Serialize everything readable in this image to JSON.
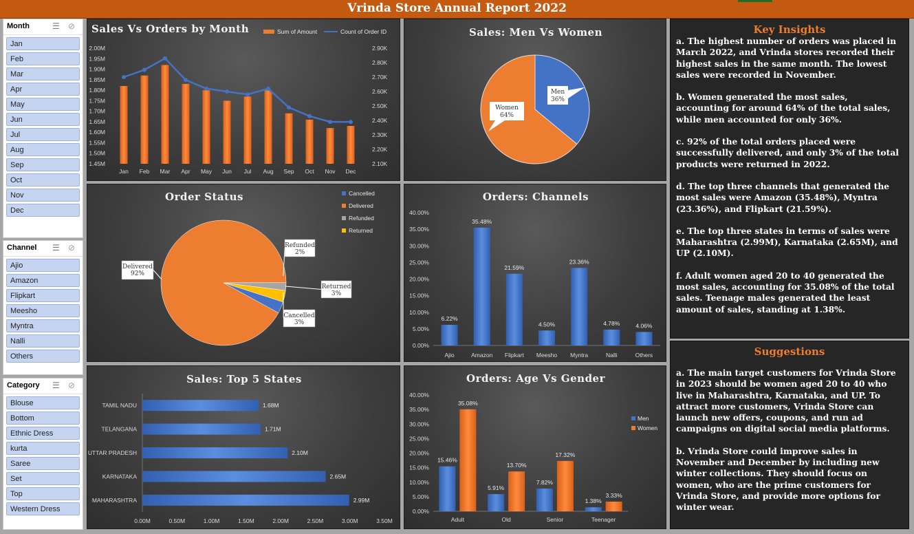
{
  "title": "Vrinda Store Annual Report 2022",
  "slicers": [
    {
      "label": "Month",
      "items": [
        "Jan",
        "Feb",
        "Mar",
        "Apr",
        "May",
        "Jun",
        "Jul",
        "Aug",
        "Sep",
        "Oct",
        "Nov",
        "Dec"
      ]
    },
    {
      "label": "Channel",
      "items": [
        "Ajio",
        "Amazon",
        "Flipkart",
        "Meesho",
        "Myntra",
        "Nalli",
        "Others"
      ]
    },
    {
      "label": "Category",
      "items": [
        "Blouse",
        "Bottom",
        "Ethnic Dress",
        "kurta",
        "Saree",
        "Set",
        "Top",
        "Western Dress"
      ]
    }
  ],
  "colors": {
    "orange": "#ed7d31",
    "blue": "#4472c4",
    "gray": "#a5a5a5",
    "yellow": "#ffc000",
    "title_bar": "#c55a11"
  },
  "insights": {
    "title": "Key Insights",
    "items": [
      "a. The highest number of orders was placed in March 2022, and Vrinda stores recorded their highest sales in the same month. The lowest sales were recorded in November.",
      "b. Women generated the most sales, accounting for around 64% of the total sales, while men accounted for only 36%.",
      "c. 92% of the total orders placed were successfully delivered, and only 3% of the total products were returned in 2022.",
      "d. The top three channels that generated the most sales were Amazon (35.48%), Myntra (23.36%), and Flipkart (21.59%).",
      "e. The top three states in terms of sales were Maharashtra (2.99M), Karnataka (2.65M), and UP (2.10M).",
      "f. Adult women aged 20 to 40 generated the most sales, accounting for 35.08% of the total sales. Teenage males generated the least amount of sales, standing at 1.38%."
    ]
  },
  "suggestions": {
    "title": "Suggestions",
    "items": [
      "a. The main target customers for Vrinda Store in 2023 should be women aged 20 to 40 who live in Maharashtra, Karnataka, and UP. To attract more customers, Vrinda Store can launch new offers, coupons, and run ad campaigns on digital social media platforms.",
      "b. Vrinda Store could improve sales in November and December by including new winter collections. They should focus on women, who are the prime customers for Vrinda Store, and provide more options for winter wear."
    ]
  },
  "chart_data": [
    {
      "id": "sales_orders",
      "type": "bar",
      "title": "Sales Vs Orders by Month",
      "categories": [
        "Jan",
        "Feb",
        "Mar",
        "Apr",
        "May",
        "Jun",
        "Jul",
        "Aug",
        "Sep",
        "Oct",
        "Nov",
        "Dec"
      ],
      "series": [
        {
          "name": "Sum of Amount",
          "kind": "bar",
          "axis": "left",
          "values": [
            1.82,
            1.87,
            1.92,
            1.83,
            1.8,
            1.75,
            1.77,
            1.8,
            1.69,
            1.66,
            1.62,
            1.63
          ]
        },
        {
          "name": "Count of Order ID",
          "kind": "line",
          "axis": "right",
          "values": [
            2.7,
            2.75,
            2.83,
            2.68,
            2.62,
            2.6,
            2.58,
            2.62,
            2.49,
            2.43,
            2.39,
            2.39
          ]
        }
      ],
      "ylim": [
        1.45,
        2.0
      ],
      "y2lim": [
        2.1,
        2.9
      ],
      "yticks": [
        "1.45M",
        "1.50M",
        "1.55M",
        "1.60M",
        "1.65M",
        "1.70M",
        "1.75M",
        "1.80M",
        "1.85M",
        "1.90M",
        "1.95M",
        "2.00M"
      ],
      "y2ticks": [
        "2.10K",
        "2.20K",
        "2.30K",
        "2.40K",
        "2.50K",
        "2.60K",
        "2.70K",
        "2.80K",
        "2.90K"
      ],
      "legend": "top-right"
    },
    {
      "id": "gender_pie",
      "type": "pie",
      "title": "Sales: Men Vs Women",
      "slices": [
        {
          "name": "Men",
          "value": 36,
          "label": "36%"
        },
        {
          "name": "Women",
          "value": 64,
          "label": "64%"
        }
      ]
    },
    {
      "id": "order_status",
      "type": "pie",
      "title": "Order Status",
      "slices": [
        {
          "name": "Delivered",
          "value": 92,
          "label": "92%"
        },
        {
          "name": "Refunded",
          "value": 2,
          "label": "2%"
        },
        {
          "name": "Returned",
          "value": 3,
          "label": "3%"
        },
        {
          "name": "Cancelled",
          "value": 3,
          "label": "3%"
        }
      ],
      "legend_items": [
        "Cancelled",
        "Delivered",
        "Refunded",
        "Returned"
      ],
      "legend": "top-right"
    },
    {
      "id": "channels",
      "type": "bar",
      "title": "Orders: Channels",
      "categories": [
        "Ajio",
        "Amazon",
        "Flipkart",
        "Meesho",
        "Myntra",
        "Nalli",
        "Others"
      ],
      "values": [
        6.22,
        35.48,
        21.59,
        4.5,
        23.36,
        4.78,
        4.06
      ],
      "labels": [
        "6.22%",
        "35.48%",
        "21.59%",
        "4.50%",
        "23.36%",
        "4.78%",
        "4.06%"
      ],
      "ylim": [
        0,
        40
      ],
      "yticks": [
        "0.00%",
        "5.00%",
        "10.00%",
        "15.00%",
        "20.00%",
        "25.00%",
        "30.00%",
        "35.00%",
        "40.00%"
      ]
    },
    {
      "id": "states",
      "type": "bar",
      "orientation": "horizontal",
      "title": "Sales: Top 5 States",
      "categories": [
        "TAMIL NADU",
        "TELANGANA",
        "UTTAR PRADESH",
        "KARNATAKA",
        "MAHARASHTRA"
      ],
      "values": [
        1.68,
        1.71,
        2.1,
        2.65,
        2.99
      ],
      "labels": [
        "1.68M",
        "1.71M",
        "2.10M",
        "2.65M",
        "2.99M"
      ],
      "xlim": [
        0,
        3.5
      ],
      "xticks": [
        "0.00M",
        "0.50M",
        "1.00M",
        "1.50M",
        "2.00M",
        "2.50M",
        "3.00M",
        "3.50M"
      ]
    },
    {
      "id": "age_gender",
      "type": "bar",
      "title": "Orders: Age Vs Gender",
      "categories": [
        "Adult",
        "Old",
        "Senior",
        "Teenager"
      ],
      "series": [
        {
          "name": "Men",
          "values": [
            15.46,
            5.91,
            7.82,
            1.38
          ],
          "labels": [
            "15.46%",
            "5.91%",
            "7.82%",
            "1.38%"
          ]
        },
        {
          "name": "Women",
          "values": [
            35.08,
            13.7,
            17.32,
            3.33
          ],
          "labels": [
            "35.08%",
            "13.70%",
            "17.32%",
            "3.33%"
          ]
        }
      ],
      "ylim": [
        0,
        40
      ],
      "yticks": [
        "0.00%",
        "5.00%",
        "10.00%",
        "15.00%",
        "20.00%",
        "25.00%",
        "30.00%",
        "35.00%",
        "40.00%"
      ],
      "legend": "right"
    }
  ]
}
